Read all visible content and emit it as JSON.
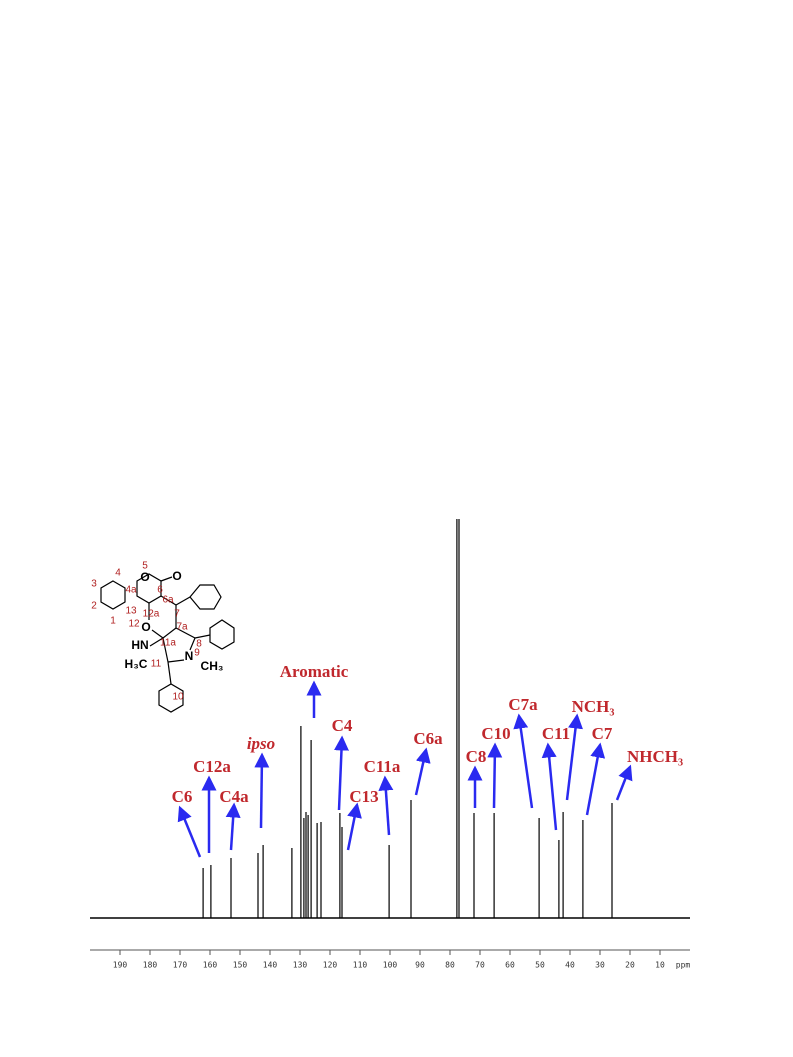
{
  "chart_data": {
    "type": "spectrum",
    "x": [
      162.3,
      159.7,
      153,
      144,
      142.3,
      132.7,
      129.7,
      128.7,
      128,
      127.3,
      126.3,
      124.3,
      123,
      116.7,
      116,
      100.3,
      93,
      77.7,
      77,
      72,
      65.3,
      50.3,
      43.7,
      42.3,
      35.7,
      26
    ],
    "values": [
      50,
      53,
      60,
      65,
      73,
      70,
      192,
      100,
      106,
      103,
      178,
      95,
      96,
      105,
      91,
      73,
      118,
      399,
      399,
      105,
      105,
      100,
      78,
      106,
      98,
      115
    ],
    "color": "#000000",
    "xlim": [
      200,
      0
    ],
    "xticks": [
      190,
      180,
      170,
      160,
      150,
      140,
      130,
      120,
      110,
      100,
      90,
      80,
      70,
      60,
      50,
      40,
      30,
      20,
      10
    ],
    "x_label": "ppm",
    "annotations": [
      "C6",
      "C12a",
      "C4a",
      "ipso",
      "Aromatic",
      "C4",
      "C13",
      "C11a",
      "C6a",
      "C8",
      "C10",
      "C7a",
      "C11",
      "NCH₃",
      "C7",
      "NHCH₃"
    ]
  },
  "structure": {
    "labels": [
      "4",
      "5",
      "4a",
      "6",
      "3",
      "2",
      "1",
      "13",
      "12a",
      "6a",
      "7",
      "7a",
      "8",
      "12",
      "11a",
      "9",
      "10",
      "11",
      "O",
      "O",
      "O",
      "HN",
      "N",
      "H₃C",
      "CH₃"
    ]
  }
}
